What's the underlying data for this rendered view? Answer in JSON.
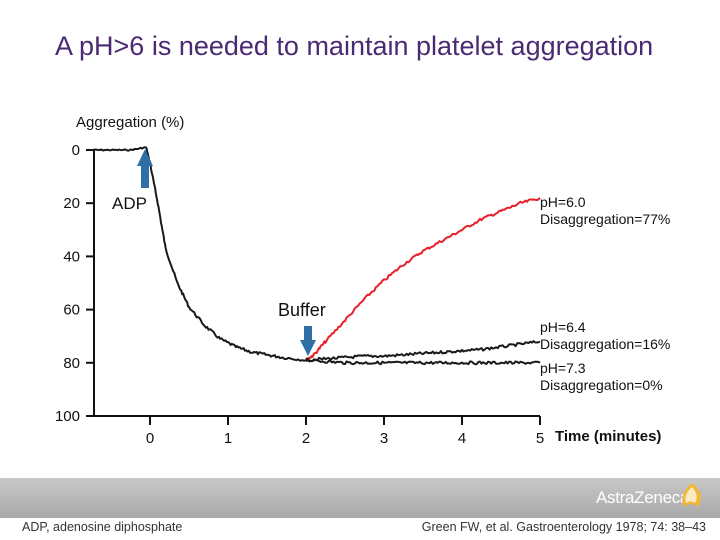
{
  "slide": {
    "title": "A pH>6 is needed to maintain platelet aggregation",
    "footnote_left": "ADP, adenosine diphosphate",
    "footnote_right": "Green FW, et al. Gastroenterology 1978; 74: 38–43",
    "logo_text": "AstraZeneca",
    "colors": {
      "title": "#4a2a72",
      "arrow": "#2e6fa6",
      "red_curve": "#e8202a",
      "black_curve": "#1a1a1a"
    }
  },
  "chart_data": {
    "type": "line",
    "title": "",
    "ylabel": "Aggregation (%)",
    "xlabel": "Time (minutes)",
    "yticks": [
      "0",
      "20",
      "40",
      "60",
      "80",
      "100"
    ],
    "xticks": [
      "0",
      "1",
      "2",
      "3",
      "4",
      "5"
    ],
    "ylim": [
      0,
      100
    ],
    "xlim": [
      -0.8,
      5
    ],
    "y_inverted": true,
    "annotations": {
      "adp": {
        "text": "ADP",
        "x": -0.05
      },
      "buffer": {
        "text": "Buffer",
        "x": 1.95
      },
      "ph60": [
        "pH=6.0",
        "Disaggregation=77%"
      ],
      "ph64": [
        "pH=6.4",
        "Disaggregation=16%"
      ],
      "ph73": [
        "pH=7.3",
        "Disaggregation=0%"
      ]
    },
    "series": [
      {
        "color": "#1a1a1a",
        "x": [
          -0.75,
          -0.5,
          -0.25,
          -0.05,
          0.0,
          0.1,
          0.2,
          0.35,
          0.5,
          0.7,
          0.9,
          1.1,
          1.3,
          1.5,
          1.7,
          2.0
        ],
        "y": [
          0,
          0,
          0,
          -1,
          5,
          20,
          37,
          50,
          59,
          66,
          71,
          74,
          76,
          77,
          78,
          79
        ]
      },
      {
        "color": "#e8202a",
        "x": [
          2.0,
          2.1,
          2.25,
          2.5,
          2.75,
          3.0,
          3.25,
          3.5,
          3.75,
          4.0,
          4.25,
          4.5,
          4.75,
          5.0
        ],
        "y": [
          79,
          77,
          72,
          64,
          56,
          49,
          43,
          38,
          34,
          30,
          26,
          23,
          20,
          18
        ]
      },
      {
        "color": "#1a1a1a",
        "x": [
          2.0,
          2.25,
          2.5,
          2.75,
          3.0,
          3.25,
          3.5,
          3.75,
          4.0,
          4.25,
          4.5,
          4.75,
          5.0
        ],
        "y": [
          79,
          78.5,
          78,
          77.5,
          77.5,
          77,
          76.5,
          76,
          75.5,
          75,
          74,
          73,
          72
        ]
      },
      {
        "color": "#1a1a1a",
        "x": [
          2.0,
          2.25,
          2.5,
          2.75,
          3.0,
          3.25,
          3.5,
          3.75,
          4.0,
          4.25,
          4.5,
          4.75,
          5.0
        ],
        "y": [
          79,
          79.5,
          80,
          80,
          80,
          80,
          80,
          80,
          80,
          80,
          80,
          80,
          80
        ]
      }
    ]
  }
}
